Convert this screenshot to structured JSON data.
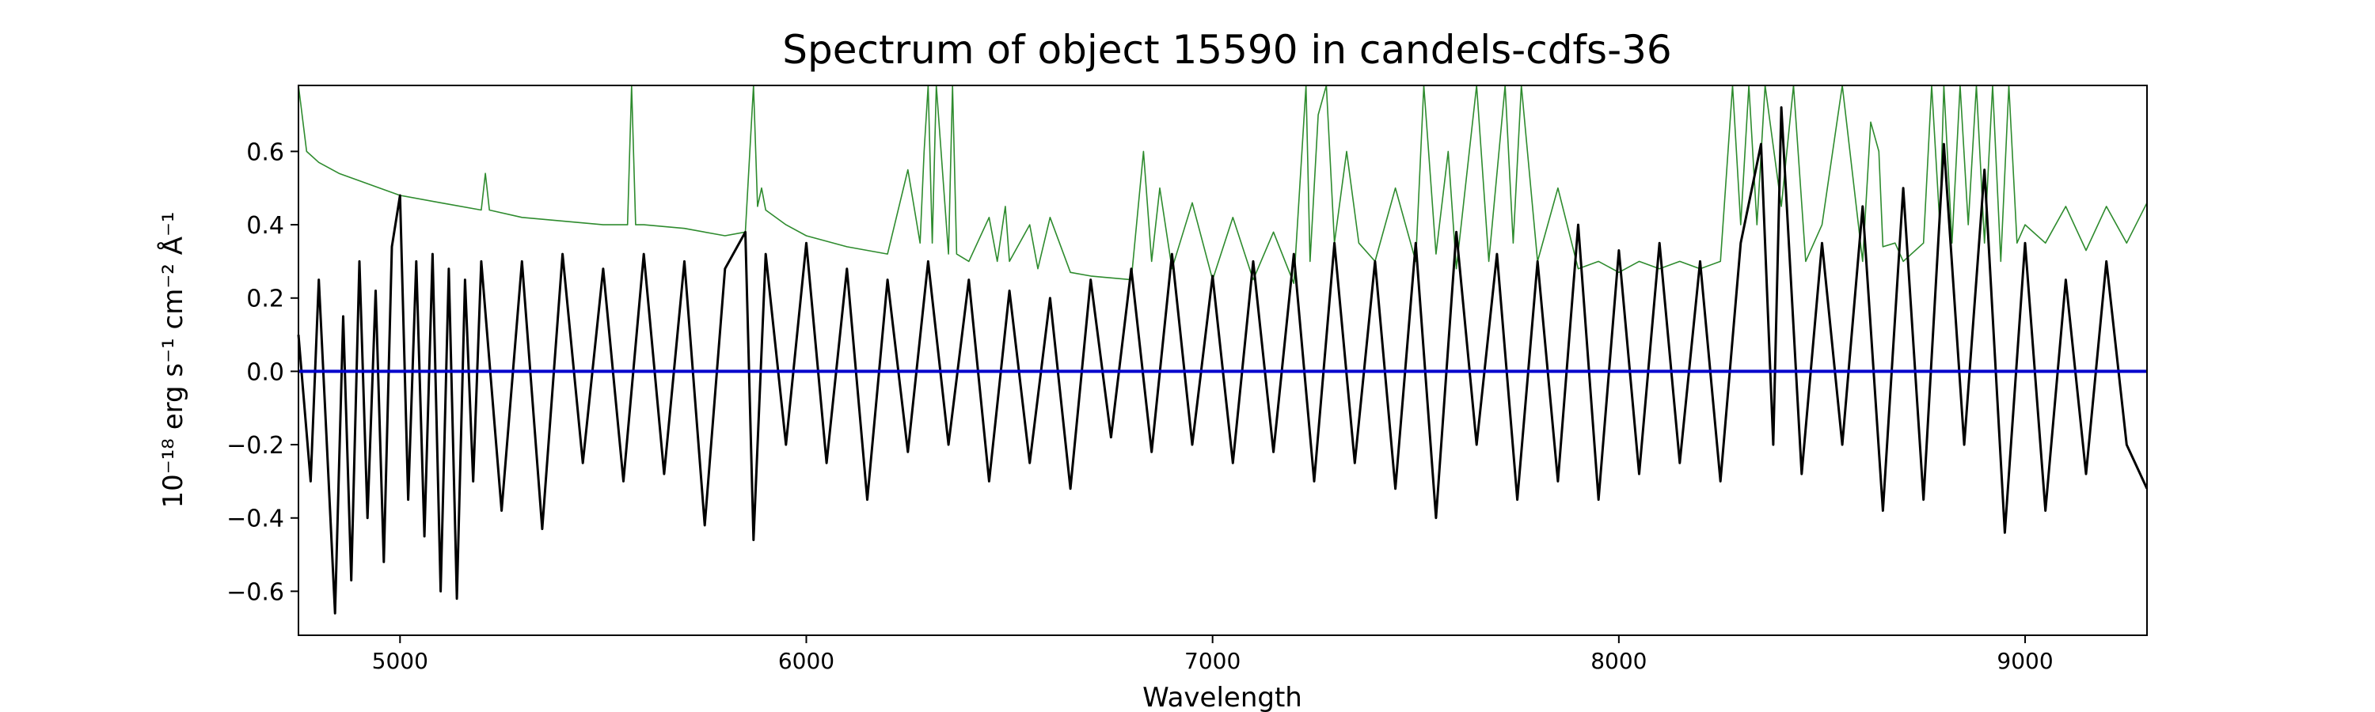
{
  "chart_data": {
    "type": "line",
    "title": "Spectrum of object 15590 in candels-cdfs-36",
    "xlabel": "Wavelength",
    "ylabel": "10⁻¹⁸ erg s⁻¹ cm⁻² Å⁻¹",
    "xlim": [
      4750,
      9300
    ],
    "ylim": [
      -0.72,
      0.78
    ],
    "grid": false,
    "x_ticks": [
      5000,
      6000,
      7000,
      8000,
      9000
    ],
    "x_tick_labels": [
      "5000",
      "6000",
      "7000",
      "8000",
      "9000"
    ],
    "y_ticks": [
      -0.6,
      -0.4,
      -0.2,
      0.0,
      0.2,
      0.4,
      0.6
    ],
    "y_tick_labels": [
      "−0.6",
      "−0.4",
      "−0.2",
      "0.0",
      "0.2",
      "0.4",
      "0.6"
    ],
    "series": [
      {
        "role": "flux",
        "color": "#000000",
        "x": [
          4750,
          4780,
          4800,
          4820,
          4840,
          4860,
          4880,
          4900,
          4920,
          4940,
          4960,
          4980,
          5000,
          5020,
          5040,
          5060,
          5080,
          5100,
          5120,
          5140,
          5160,
          5180,
          5200,
          5250,
          5300,
          5350,
          5400,
          5450,
          5500,
          5550,
          5600,
          5650,
          5700,
          5750,
          5800,
          5850,
          5870,
          5900,
          5950,
          6000,
          6050,
          6100,
          6150,
          6200,
          6250,
          6300,
          6350,
          6400,
          6450,
          6500,
          6550,
          6600,
          6650,
          6700,
          6750,
          6800,
          6850,
          6900,
          6950,
          7000,
          7050,
          7100,
          7150,
          7200,
          7250,
          7300,
          7350,
          7400,
          7450,
          7500,
          7550,
          7600,
          7650,
          7700,
          7750,
          7800,
          7850,
          7900,
          7950,
          8000,
          8050,
          8100,
          8150,
          8200,
          8250,
          8300,
          8350,
          8380,
          8400,
          8450,
          8500,
          8550,
          8600,
          8650,
          8700,
          8750,
          8800,
          8850,
          8900,
          8950,
          9000,
          9050,
          9100,
          9150,
          9200,
          9250,
          9300
        ],
        "y": [
          0.1,
          -0.3,
          0.25,
          -0.2,
          -0.66,
          0.15,
          -0.57,
          0.3,
          -0.4,
          0.22,
          -0.52,
          0.34,
          0.48,
          -0.35,
          0.3,
          -0.45,
          0.32,
          -0.6,
          0.28,
          -0.62,
          0.25,
          -0.3,
          0.3,
          -0.38,
          0.3,
          -0.43,
          0.32,
          -0.25,
          0.28,
          -0.3,
          0.32,
          -0.28,
          0.3,
          -0.42,
          0.28,
          0.38,
          -0.46,
          0.32,
          -0.2,
          0.35,
          -0.25,
          0.28,
          -0.35,
          0.25,
          -0.22,
          0.3,
          -0.2,
          0.25,
          -0.3,
          0.22,
          -0.25,
          0.2,
          -0.32,
          0.25,
          -0.18,
          0.28,
          -0.22,
          0.32,
          -0.2,
          0.26,
          -0.25,
          0.3,
          -0.22,
          0.32,
          -0.3,
          0.35,
          -0.25,
          0.3,
          -0.32,
          0.35,
          -0.4,
          0.38,
          -0.2,
          0.32,
          -0.35,
          0.3,
          -0.3,
          0.4,
          -0.35,
          0.33,
          -0.28,
          0.35,
          -0.25,
          0.3,
          -0.3,
          0.35,
          0.62,
          -0.2,
          0.72,
          -0.28,
          0.35,
          -0.2,
          0.45,
          -0.38,
          0.5,
          -0.35,
          0.62,
          -0.2,
          0.55,
          -0.44,
          0.35,
          -0.38,
          0.25,
          -0.28,
          0.3,
          -0.2,
          -0.32
        ]
      },
      {
        "role": "error",
        "color": "#2e8b2e",
        "x": [
          4750,
          4770,
          4800,
          4850,
          4900,
          4950,
          5000,
          5100,
          5200,
          5210,
          5220,
          5300,
          5400,
          5500,
          5560,
          5570,
          5580,
          5600,
          5700,
          5800,
          5850,
          5870,
          5880,
          5890,
          5900,
          5950,
          6000,
          6100,
          6200,
          6250,
          6280,
          6290,
          6300,
          6310,
          6320,
          6350,
          6360,
          6370,
          6400,
          6450,
          6470,
          6490,
          6500,
          6550,
          6570,
          6600,
          6650,
          6700,
          6800,
          6830,
          6850,
          6870,
          6900,
          6950,
          7000,
          7050,
          7100,
          7150,
          7200,
          7230,
          7240,
          7260,
          7280,
          7300,
          7330,
          7360,
          7400,
          7450,
          7500,
          7520,
          7550,
          7580,
          7600,
          7650,
          7680,
          7720,
          7740,
          7760,
          7800,
          7850,
          7900,
          7950,
          8000,
          8050,
          8100,
          8150,
          8200,
          8250,
          8280,
          8300,
          8320,
          8340,
          8360,
          8400,
          8430,
          8460,
          8500,
          8550,
          8600,
          8620,
          8640,
          8650,
          8680,
          8700,
          8750,
          8770,
          8790,
          8800,
          8820,
          8840,
          8860,
          8880,
          8900,
          8920,
          8940,
          8960,
          8980,
          9000,
          9050,
          9100,
          9150,
          9200,
          9250,
          9300
        ],
        "y": [
          0.78,
          0.6,
          0.57,
          0.54,
          0.52,
          0.5,
          0.48,
          0.46,
          0.44,
          0.54,
          0.44,
          0.42,
          0.41,
          0.4,
          0.4,
          0.78,
          0.4,
          0.4,
          0.39,
          0.37,
          0.38,
          0.78,
          0.45,
          0.5,
          0.44,
          0.4,
          0.37,
          0.34,
          0.32,
          0.55,
          0.35,
          0.6,
          0.78,
          0.35,
          0.78,
          0.32,
          0.78,
          0.32,
          0.3,
          0.42,
          0.3,
          0.45,
          0.3,
          0.4,
          0.28,
          0.42,
          0.27,
          0.26,
          0.25,
          0.6,
          0.3,
          0.5,
          0.28,
          0.46,
          0.25,
          0.42,
          0.25,
          0.38,
          0.24,
          0.78,
          0.3,
          0.7,
          0.78,
          0.35,
          0.6,
          0.35,
          0.3,
          0.5,
          0.3,
          0.78,
          0.32,
          0.6,
          0.28,
          0.78,
          0.3,
          0.78,
          0.35,
          0.78,
          0.3,
          0.5,
          0.28,
          0.3,
          0.27,
          0.3,
          0.28,
          0.3,
          0.28,
          0.3,
          0.78,
          0.4,
          0.78,
          0.4,
          0.78,
          0.45,
          0.78,
          0.3,
          0.4,
          0.78,
          0.3,
          0.68,
          0.6,
          0.34,
          0.35,
          0.3,
          0.35,
          0.78,
          0.4,
          0.78,
          0.35,
          0.78,
          0.4,
          0.78,
          0.35,
          0.78,
          0.3,
          0.78,
          0.35,
          0.4,
          0.35,
          0.45,
          0.33,
          0.45,
          0.35,
          0.46
        ]
      },
      {
        "role": "continuum",
        "color": "#0000cc",
        "x": [
          4750,
          9300
        ],
        "y": [
          0.0,
          0.0
        ]
      }
    ]
  }
}
